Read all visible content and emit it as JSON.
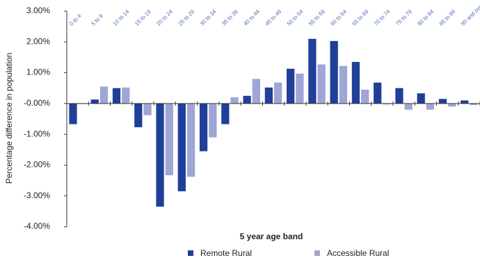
{
  "chart_data": {
    "type": "bar",
    "ylabel": "Percentage difference in population",
    "xlabel": "5 year age band",
    "categories": [
      "0 to 4",
      "5 to 9",
      "10 to 14",
      "15 to 19",
      "20 to 24",
      "25 to 29",
      "30 to 34",
      "35 to 39",
      "40 to 44",
      "45 to 49",
      "50 to 54",
      "55 to 59",
      "60 to 64",
      "65 to 69",
      "70 to 74",
      "75 to 79",
      "80 to 84",
      "85 to 89",
      "90 and over"
    ],
    "series": [
      {
        "name": "Remote Rural",
        "color": "#1f3f99",
        "values": [
          -0.67,
          0.13,
          0.5,
          -0.77,
          -3.35,
          -2.85,
          -1.55,
          -0.67,
          0.25,
          0.52,
          1.13,
          2.1,
          2.03,
          1.35,
          0.68,
          0.5,
          0.33,
          0.15,
          0.1
        ]
      },
      {
        "name": "Accessible Rural",
        "color": "#9fa5d4",
        "values": [
          0.0,
          0.55,
          0.52,
          -0.38,
          -2.33,
          -2.38,
          -1.1,
          0.2,
          0.8,
          0.68,
          0.97,
          1.27,
          1.22,
          0.45,
          -0.03,
          -0.2,
          -0.2,
          -0.1,
          -0.05
        ]
      }
    ],
    "ylim": [
      -4,
      3
    ],
    "yticks": [
      {
        "value": -4,
        "label": "-4.00%"
      },
      {
        "value": -3,
        "label": "-3.00%"
      },
      {
        "value": -2,
        "label": "-2.00%"
      },
      {
        "value": -1,
        "label": "-1.00%"
      },
      {
        "value": 0,
        "label": "-0.00%"
      },
      {
        "value": 1,
        "label": "1.00%"
      },
      {
        "value": 2,
        "label": "2.00%"
      },
      {
        "value": 3,
        "label": "3.00%"
      }
    ],
    "grid": false
  }
}
